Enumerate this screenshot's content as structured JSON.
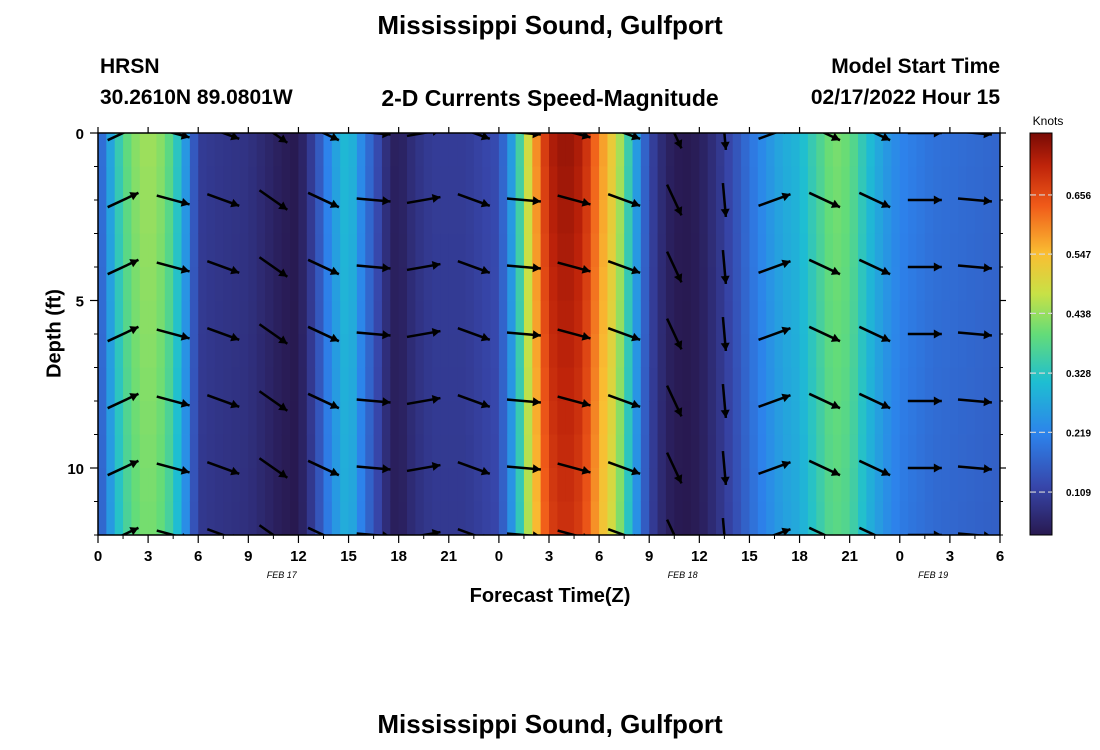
{
  "page": {
    "title": "Mississippi Sound, Gulfport",
    "station_code": "HRSN",
    "station_coords": "30.2610N  89.0801W",
    "subtitle": "2-D Currents Speed-Magnitude",
    "model_start_label": "Model Start Time",
    "model_start_value": "02/17/2022 Hour 15",
    "footer_title": "Mississippi Sound, Gulfport"
  },
  "chart_data": {
    "type": "heatmap",
    "title": "2-D Currents Speed-Magnitude",
    "xlabel": "Forecast Time(Z)",
    "ylabel": "Depth (ft)",
    "x_ticks": [
      "0",
      "3",
      "6",
      "9",
      "12",
      "15",
      "18",
      "21",
      "0",
      "3",
      "6",
      "9",
      "12",
      "15",
      "18",
      "21",
      "0",
      "3",
      "6"
    ],
    "date_labels": [
      {
        "label": "FEB 17",
        "hour": 11
      },
      {
        "label": "FEB 18",
        "hour": 35
      },
      {
        "label": "FEB 19",
        "hour": 50
      }
    ],
    "x_range_hours": [
      0,
      54
    ],
    "y_range_ft": [
      0,
      12
    ],
    "y_ticks": [
      0,
      5,
      10
    ],
    "colorbar": {
      "unit": "Knots",
      "ticks": [
        "0.656",
        "0.547",
        "0.438",
        "0.328",
        "0.219",
        "0.109"
      ],
      "tick_values": [
        0.656,
        0.547,
        0.438,
        0.328,
        0.219,
        0.109
      ],
      "range": [
        0.03,
        0.77
      ]
    },
    "speed_profile_hours": [
      0,
      0.5,
      1,
      2,
      3,
      4,
      5,
      5.5,
      6,
      7,
      9,
      10,
      11,
      12,
      13,
      14,
      15,
      16,
      17,
      17.5,
      18,
      19,
      20,
      22,
      24,
      25,
      26,
      27,
      28,
      29,
      30,
      31,
      31.5,
      32,
      33,
      34,
      35,
      36,
      37,
      38,
      39,
      40,
      41,
      42,
      43,
      44,
      45,
      46,
      47,
      48,
      50,
      52,
      54
    ],
    "speed_profile_knots": [
      0.15,
      0.22,
      0.32,
      0.42,
      0.45,
      0.42,
      0.3,
      0.2,
      0.1,
      0.09,
      0.08,
      0.06,
      0.04,
      0.03,
      0.12,
      0.25,
      0.32,
      0.2,
      0.1,
      0.05,
      0.04,
      0.08,
      0.1,
      0.1,
      0.13,
      0.3,
      0.55,
      0.72,
      0.75,
      0.72,
      0.6,
      0.5,
      0.4,
      0.3,
      0.12,
      0.05,
      0.03,
      0.04,
      0.08,
      0.13,
      0.19,
      0.24,
      0.28,
      0.3,
      0.36,
      0.42,
      0.4,
      0.32,
      0.26,
      0.22,
      0.19,
      0.18,
      0.17
    ],
    "arrow_hours": [
      0,
      3,
      6,
      9,
      12,
      15,
      18,
      21,
      24,
      27,
      30,
      33,
      36,
      39,
      42,
      45,
      48,
      51
    ],
    "arrow_depths_ft": [
      0,
      2,
      4,
      6,
      8,
      10,
      12
    ],
    "arrow_directions_deg": [
      -25,
      15,
      20,
      35,
      25,
      5,
      -10,
      20,
      5,
      15,
      20,
      65,
      85,
      -20,
      25,
      25,
      0,
      5
    ],
    "arrow_scale_factor": 1.0
  }
}
